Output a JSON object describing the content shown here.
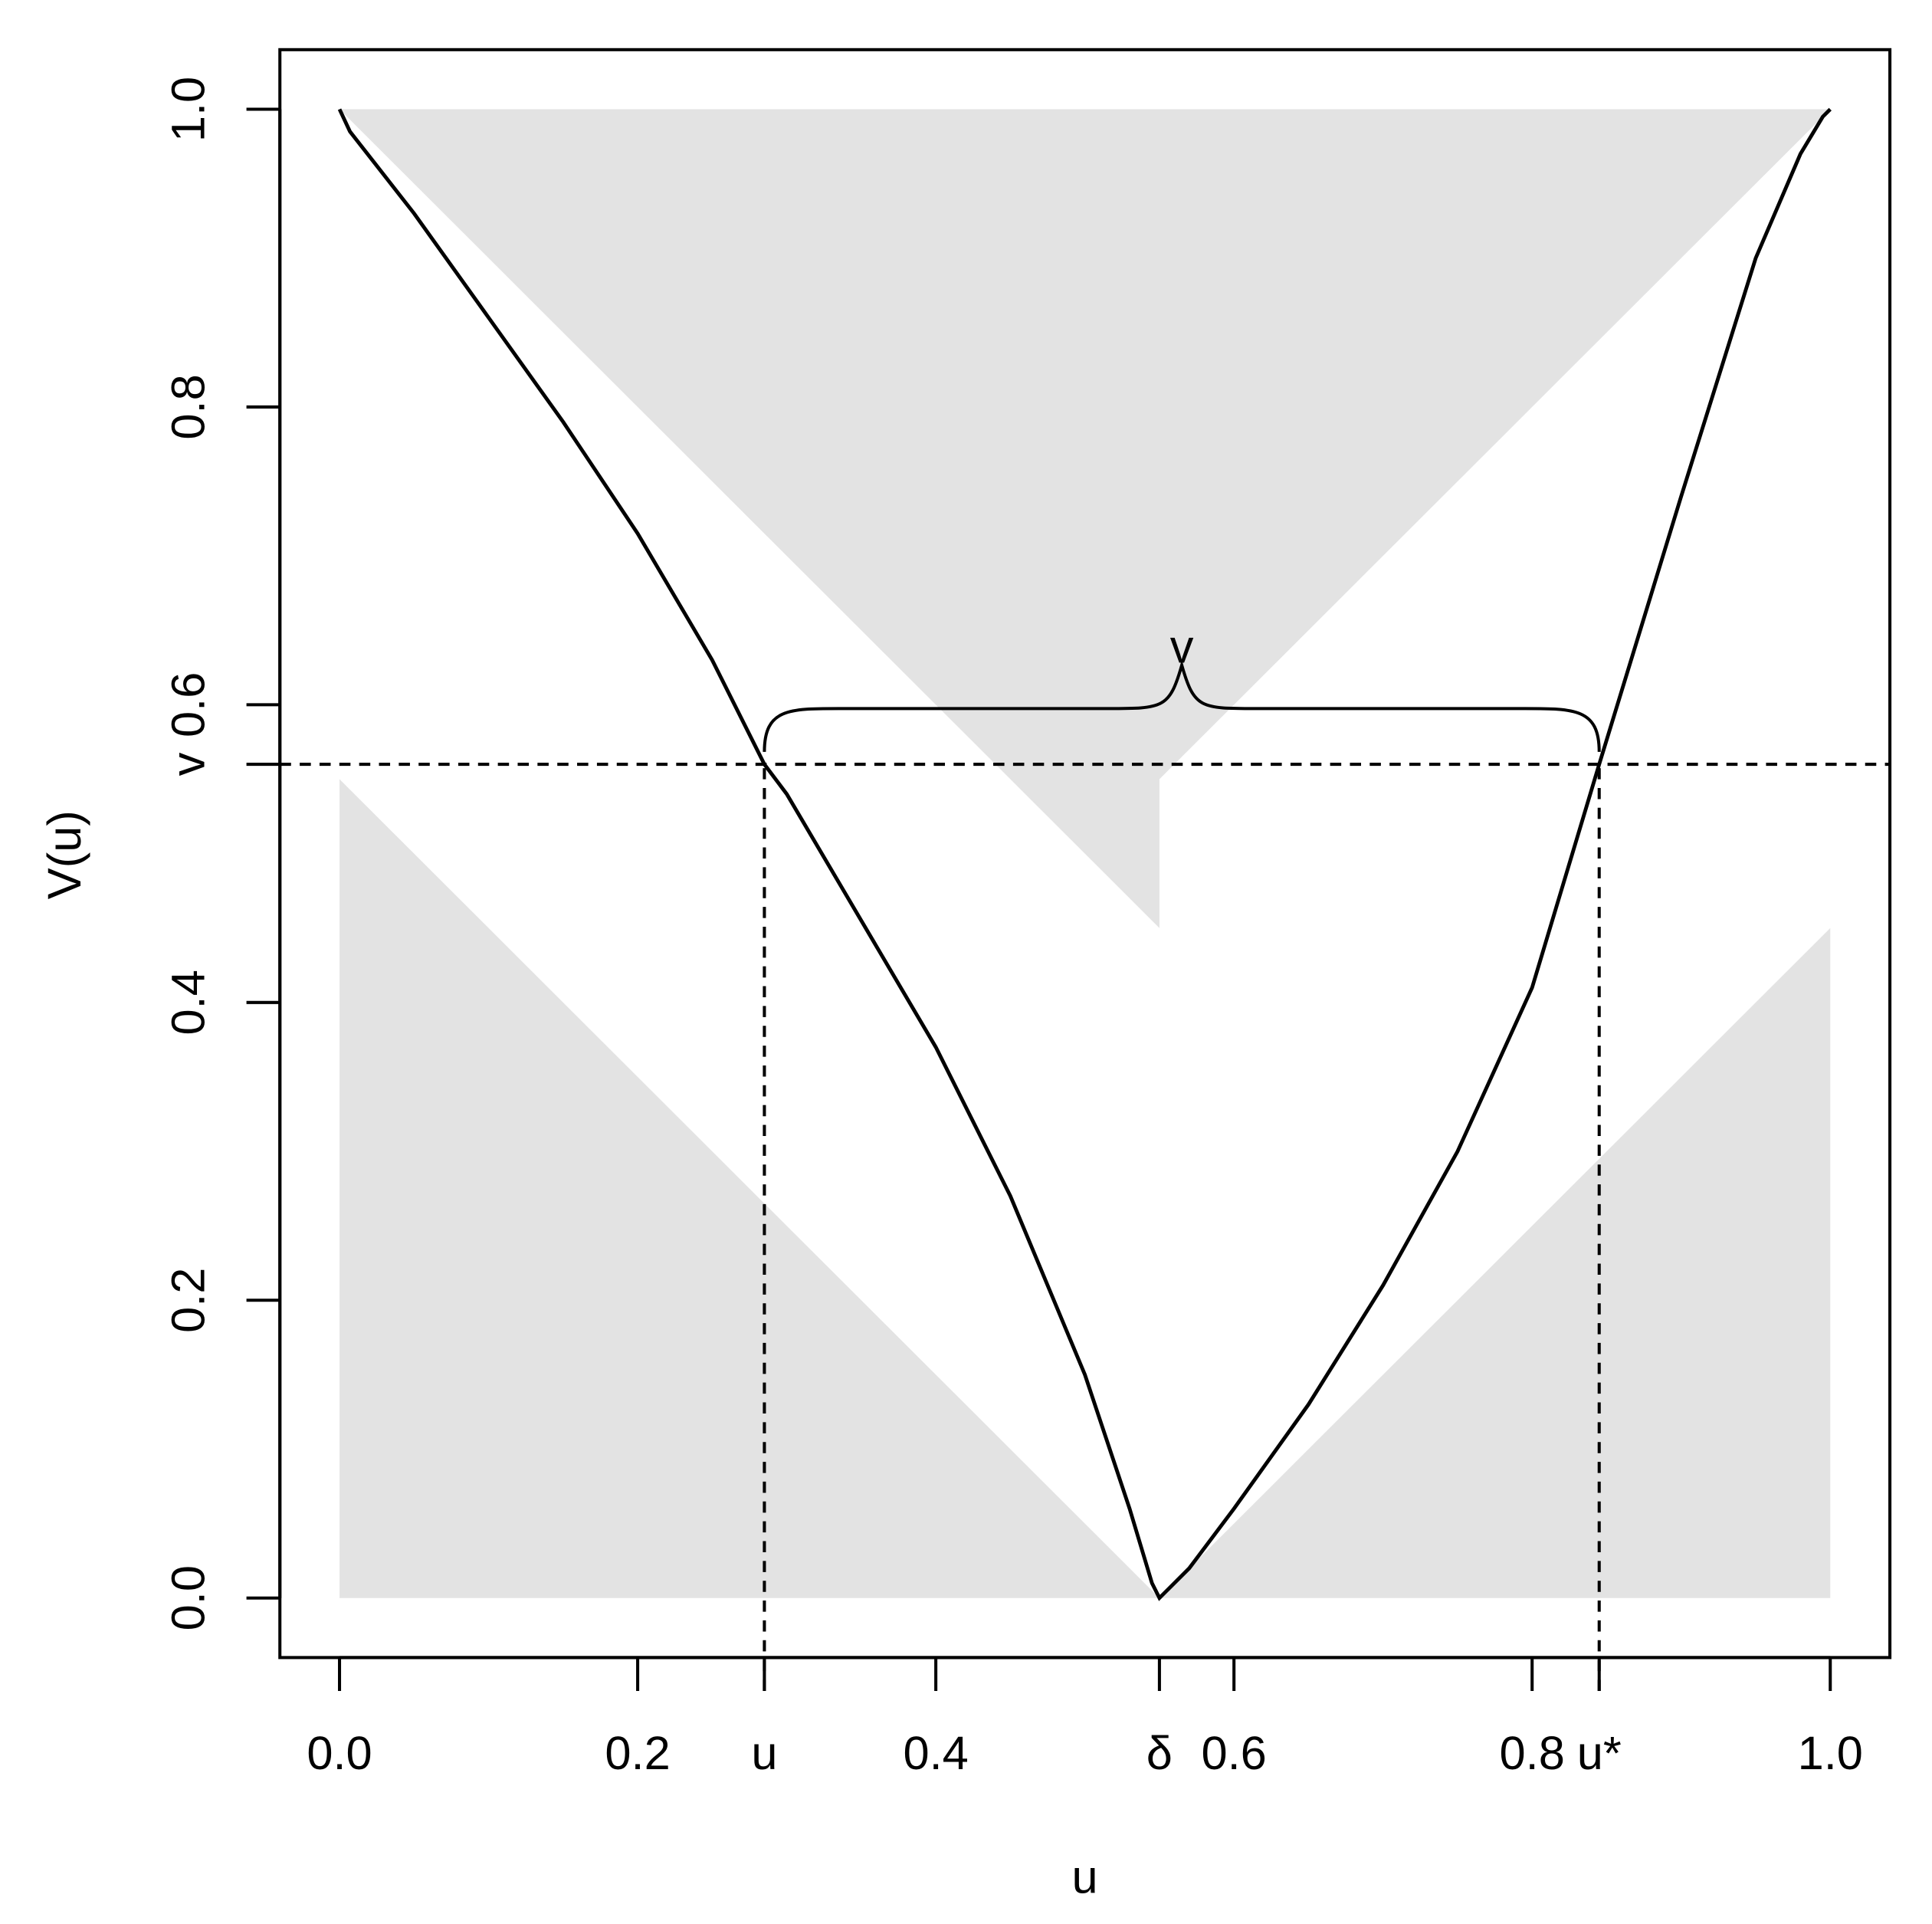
{
  "chart_data": {
    "type": "line",
    "x_label": "u",
    "y_label": "V(u)",
    "xlim": [
      -0.04,
      1.04
    ],
    "ylim": [
      -0.04,
      1.04
    ],
    "xticks": [
      {
        "value": 0,
        "label": "0.0"
      },
      0.2,
      {
        "value": 0.285,
        "label": "u"
      },
      0.4,
      {
        "value": 0.55,
        "label": "δ"
      },
      0.6,
      0.8,
      {
        "value": 0.845,
        "label": "u*"
      },
      {
        "value": 1,
        "label": "1.0"
      }
    ],
    "yticks": [
      {
        "value": 0,
        "label": "0.0"
      },
      0.2,
      0.4,
      {
        "value": 0.56,
        "label": "v"
      },
      0.6,
      0.8,
      {
        "value": 1,
        "label": "1.0"
      }
    ],
    "brace_label": "v",
    "shaded_regions": [
      {
        "x": [
          0,
          1,
          0.55,
          0.55
        ],
        "y": [
          1,
          1,
          0.55,
          0.45
        ]
      },
      {
        "x": [
          0,
          0,
          0.55
        ],
        "y": [
          0,
          0.55,
          0
        ]
      },
      {
        "x": [
          0.55,
          1,
          1
        ],
        "y": [
          0,
          0,
          0.45
        ]
      }
    ],
    "shade_color": "#e3e3e3",
    "series": [
      {
        "color": "#000000",
        "x": [
          0,
          0.007,
          0.05,
          0.1,
          0.15,
          0.2,
          0.25,
          0.285,
          0.3,
          0.35,
          0.4,
          0.45,
          0.5,
          0.53,
          0.545,
          0.55,
          0.57,
          0.6,
          0.65,
          0.7,
          0.75,
          0.8,
          0.845,
          0.9,
          0.95,
          0.98,
          0.995,
          1
        ],
        "values": [
          1,
          0.985,
          0.93,
          0.86,
          0.79,
          0.715,
          0.63,
          0.56,
          0.54,
          0.455,
          0.37,
          0.27,
          0.15,
          0.06,
          0.01,
          0,
          0.02,
          0.06,
          0.13,
          0.21,
          0.3,
          0.41,
          0.56,
          0.74,
          0.9,
          0.97,
          0.995,
          1
        ]
      }
    ]
  }
}
